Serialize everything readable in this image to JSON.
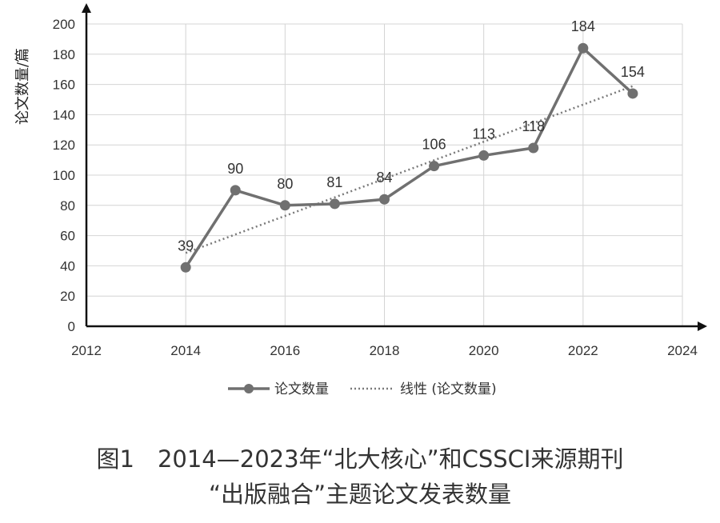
{
  "chart_data": {
    "type": "line",
    "ylabel": "论文数量/篇",
    "xlim": [
      2012,
      2024
    ],
    "ylim": [
      0,
      200
    ],
    "x_ticks": [
      2012,
      2014,
      2016,
      2018,
      2020,
      2022,
      2024
    ],
    "y_ticks": [
      0,
      20,
      40,
      60,
      80,
      100,
      120,
      140,
      160,
      180,
      200
    ],
    "grid": true,
    "legend_position": "bottom",
    "series": [
      {
        "name": "论文数量",
        "style": "solid-with-markers",
        "color": "#707070",
        "x": [
          2014,
          2015,
          2016,
          2017,
          2018,
          2019,
          2020,
          2021,
          2022,
          2023
        ],
        "values": [
          39,
          90,
          80,
          81,
          84,
          106,
          113,
          118,
          184,
          154
        ],
        "labels": [
          "39",
          "90",
          "80",
          "81",
          "84",
          "106",
          "113",
          "118",
          "184",
          "154"
        ]
      },
      {
        "name": "线性 (论文数量)",
        "style": "dotted-trendline",
        "color": "#7a7a7a",
        "x": [
          2014,
          2023
        ],
        "values": [
          48.5,
          158.9
        ]
      }
    ]
  },
  "caption": {
    "line1": "图1　2014—2023年“北大核心”和CSSCI来源期刊",
    "line2": "“出版融合”主题论文发表数量"
  }
}
